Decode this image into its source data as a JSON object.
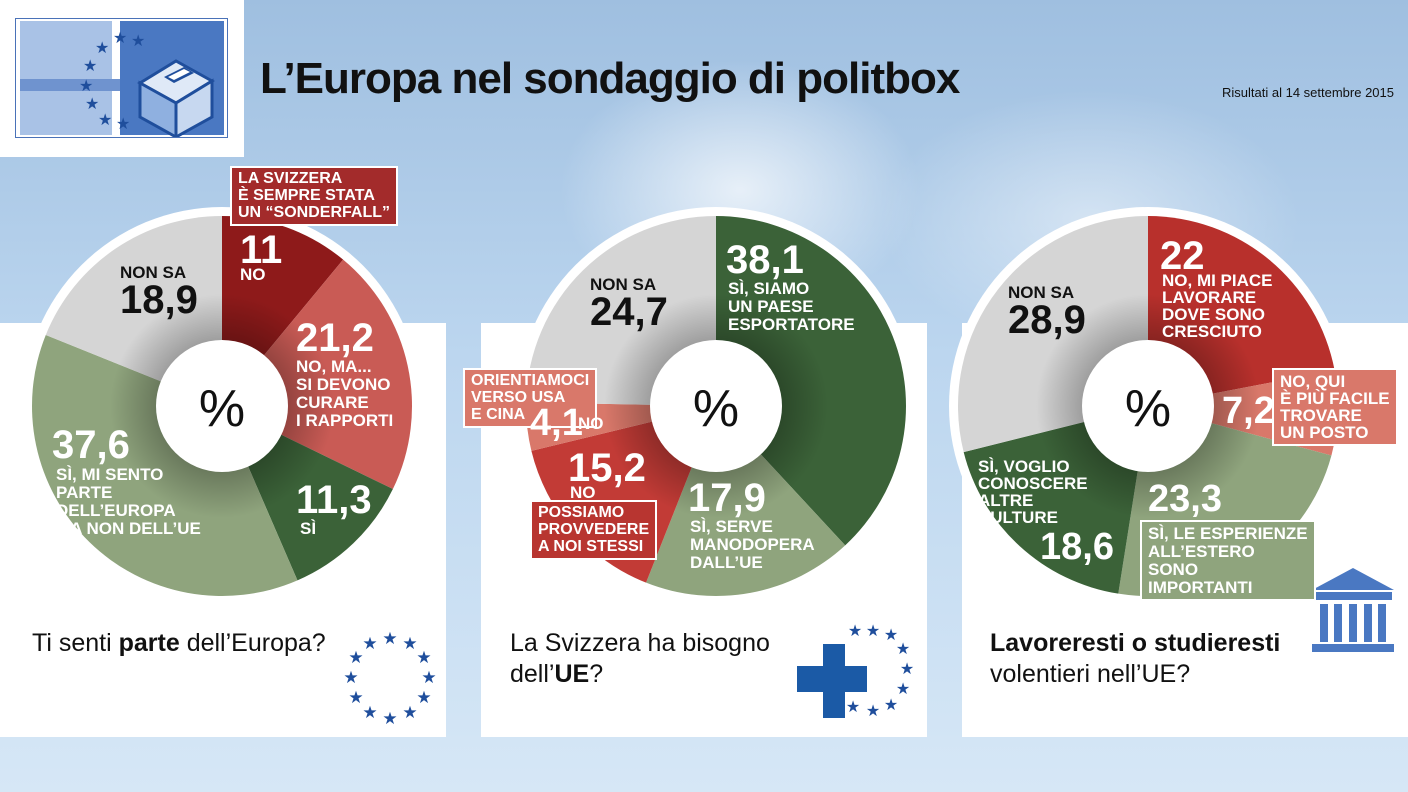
{
  "header": {
    "title": "L’Europa nel sondaggio di politbox",
    "date": "Risultati al 14 settembre 2015"
  },
  "colors": {
    "red_dark": "#8e1a1a",
    "red": "#c23b36",
    "red_light": "#d9786a",
    "green_dark": "#3b6238",
    "green_olive": "#8fa47d",
    "grey": "#d5d5d5",
    "eu_blue": "#1f4e9c",
    "swiss_blue": "#1b5aa6"
  },
  "chart_data": [
    {
      "type": "pie",
      "center_label": "%",
      "question": {
        "pre": "Ti senti ",
        "bold": "parte",
        "post": " dell’Europa?"
      },
      "slices": [
        {
          "value": 11,
          "display": "11",
          "label": "NO",
          "callout": [
            "LA SVIZZERA",
            "È SEMPRE STATA",
            "UN “SONDERFALL”"
          ],
          "color": "#8e1a1a"
        },
        {
          "value": 21.2,
          "display": "21,2",
          "label": [
            "NO, MA...",
            "SI DEVONO",
            "CURARE",
            "I RAPPORTI"
          ],
          "color": "#c95b55"
        },
        {
          "value": 11.3,
          "display": "11,3",
          "label": [
            "SÌ"
          ],
          "color": "#3b6238"
        },
        {
          "value": 37.6,
          "display": "37,6",
          "label": [
            "SÌ, MI SENTO",
            "PARTE",
            "DELL’EUROPA",
            "MA NON DELL’UE"
          ],
          "color": "#8fa47d"
        },
        {
          "value": 18.9,
          "display": "18,9",
          "label": [
            "NON SA"
          ],
          "color": "#d5d5d5"
        }
      ]
    },
    {
      "type": "pie",
      "center_label": "%",
      "question": {
        "pre": "La Svizzera ha bisogno",
        "pre2": "dell’",
        "bold": "UE",
        "post": "?"
      },
      "slices": [
        {
          "value": 38.1,
          "display": "38,1",
          "label": [
            "SÌ, SIAMO",
            "UN PAESE",
            "ESPORTATORE"
          ],
          "color": "#3b6238"
        },
        {
          "value": 17.9,
          "display": "17,9",
          "label": [
            "SÌ, SERVE",
            "MANODOPERA",
            "DALL’UE"
          ],
          "color": "#8fa47d"
        },
        {
          "value": 15.2,
          "display": "15,2",
          "label": [
            "NO"
          ],
          "callout": [
            "POSSIAMO",
            "PROVVEDERE",
            "A NOI STESSI"
          ],
          "color": "#c23b36"
        },
        {
          "value": 4.1,
          "display": "4,1",
          "label": [
            "NO"
          ],
          "callout": [
            "ORIENTIAMOCI",
            "VERSO USA",
            "E CINA"
          ],
          "color": "#d9786a"
        },
        {
          "value": 24.7,
          "display": "24,7",
          "label": [
            "NON SA"
          ],
          "color": "#d5d5d5"
        }
      ]
    },
    {
      "type": "pie",
      "center_label": "%",
      "question": {
        "bold": "Lavoreresti o studieresti",
        "post": "volentieri nell’UE?"
      },
      "slices": [
        {
          "value": 22,
          "display": "22",
          "label": [
            "NO, MI PIACE",
            "LAVORARE",
            "DOVE SONO",
            "CRESCIUTO"
          ],
          "color": "#b8302c"
        },
        {
          "value": 7.2,
          "display": "7,2",
          "label": [],
          "callout": [
            "NO, QUI",
            "È PIÙ FACILE",
            "TROVARE",
            "UN POSTO"
          ],
          "color": "#d9786a"
        },
        {
          "value": 23.3,
          "display": "23,3",
          "label": [],
          "callout": [
            "SÌ, LE ESPERIENZE",
            "ALL’ESTERO",
            "SONO",
            "IMPORTANTI"
          ],
          "color": "#8fa47d"
        },
        {
          "value": 18.6,
          "display": "18,6",
          "label": [
            "SÌ, VOGLIO",
            "CONOSCERE",
            "ALTRE",
            "CULTURE"
          ],
          "color": "#3b6238"
        },
        {
          "value": 28.9,
          "display": "28,9",
          "label": [
            "NON SA"
          ],
          "color": "#d5d5d5"
        }
      ]
    }
  ]
}
